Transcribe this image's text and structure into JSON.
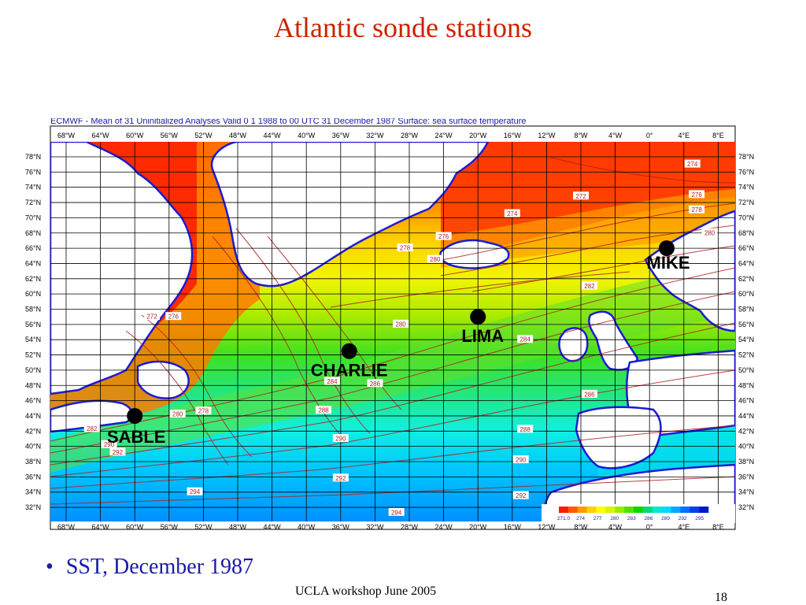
{
  "slide": {
    "title": "Atlantic sonde stations",
    "map_caption": "ECMWF - Mean of 31 Uninitialized Analyses Valid 0 1 1988 to 00 UTC 31 December 1987 Surface: sea surface temperature",
    "bullet": "SST, December 1987",
    "footer": "UCLA workshop June 2005",
    "page_number": "18"
  },
  "map": {
    "top_lon_labels": [
      "68°W",
      "64°W",
      "60°W",
      "56°W",
      "52°W",
      "48°W",
      "44°W",
      "40°W",
      "36°W",
      "32°W",
      "28°W",
      "24°W",
      "20°W",
      "16°W",
      "12°W",
      "8°W",
      "4°W",
      "0°",
      "4°E",
      "8°E"
    ],
    "bottom_lon_labels": [
      "68°W",
      "64°W",
      "60°W",
      "56°W",
      "52°W",
      "48°W",
      "44°W",
      "40°W",
      "36°W",
      "32°W",
      "28°W",
      "24°W",
      "20°W",
      "16°W",
      "12°W",
      "8°W",
      "4°W",
      "0°",
      "4°E",
      "8°E"
    ],
    "left_lat_labels": [
      "78°N",
      "76°N",
      "74°N",
      "72°N",
      "70°N",
      "68°N",
      "66°N",
      "64°N",
      "62°N",
      "60°N",
      "58°N",
      "56°N",
      "54°N",
      "52°N",
      "50°N",
      "48°N",
      "46°N",
      "44°N",
      "42°N",
      "40°N",
      "38°N",
      "36°N",
      "34°N",
      "32°N"
    ],
    "right_lat_labels": [
      "78°N",
      "76°N",
      "74°N",
      "72°N",
      "70°N",
      "68°N",
      "66°N",
      "64°N",
      "62°N",
      "60°N",
      "58°N",
      "56°N",
      "54°N",
      "52°N",
      "50°N",
      "48°N",
      "46°N",
      "44°N",
      "42°N",
      "40°N",
      "38°N",
      "36°N",
      "34°N",
      "32°N"
    ],
    "stations": [
      {
        "name": "MIKE",
        "lon": 2,
        "lat": 66
      },
      {
        "name": "LIMA",
        "lon": -20,
        "lat": 57
      },
      {
        "name": "CHARLIE",
        "lon": -35,
        "lat": 52.5
      },
      {
        "name": "SABLE",
        "lon": -60,
        "lat": 44
      }
    ],
    "contour_labels": [
      {
        "text": "274",
        "lon": 5,
        "lat": 77
      },
      {
        "text": "272",
        "lon": -8,
        "lat": 72.8
      },
      {
        "text": "276",
        "lon": 5.5,
        "lat": 73
      },
      {
        "text": "278",
        "lon": 5.5,
        "lat": 71
      },
      {
        "text": "274",
        "lon": -16,
        "lat": 70.5
      },
      {
        "text": "280",
        "lon": 7,
        "lat": 68
      },
      {
        "text": "276",
        "lon": -24,
        "lat": 67.5
      },
      {
        "text": "278",
        "lon": -28.5,
        "lat": 66
      },
      {
        "text": "280",
        "lon": -25,
        "lat": 64.5
      },
      {
        "text": "282",
        "lon": -7,
        "lat": 61
      },
      {
        "text": "276",
        "lon": -55.5,
        "lat": 57
      },
      {
        "text": "272",
        "lon": -58,
        "lat": 57
      },
      {
        "text": "280",
        "lon": -29,
        "lat": 56
      },
      {
        "text": "284",
        "lon": -14.5,
        "lat": 54
      },
      {
        "text": "284",
        "lon": -37,
        "lat": 48.5
      },
      {
        "text": "286",
        "lon": -32,
        "lat": 48.2
      },
      {
        "text": "286",
        "lon": -7,
        "lat": 46.8
      },
      {
        "text": "278",
        "lon": -52,
        "lat": 44.6
      },
      {
        "text": "280",
        "lon": -55,
        "lat": 44.2
      },
      {
        "text": "288",
        "lon": -38,
        "lat": 44.7
      },
      {
        "text": "288",
        "lon": -14.5,
        "lat": 42.2
      },
      {
        "text": "282",
        "lon": -65,
        "lat": 42.3
      },
      {
        "text": "290",
        "lon": -36,
        "lat": 41
      },
      {
        "text": "290",
        "lon": -63,
        "lat": 40.2
      },
      {
        "text": "292",
        "lon": -62,
        "lat": 39.2
      },
      {
        "text": "290",
        "lon": -15,
        "lat": 38.2
      },
      {
        "text": "292",
        "lon": -36,
        "lat": 35.8
      },
      {
        "text": "294",
        "lon": -53,
        "lat": 34
      },
      {
        "text": "292",
        "lon": -15,
        "lat": 33.5
      },
      {
        "text": "294",
        "lon": -29.5,
        "lat": 31.3
      }
    ],
    "colorbar": {
      "labels": [
        "271.0",
        "274",
        "277",
        "280",
        "283",
        "286",
        "289",
        "292",
        "295"
      ],
      "colors": [
        "#ff1a00",
        "#ff5a00",
        "#ff9a00",
        "#ffd200",
        "#ffff00",
        "#d6f500",
        "#9aeb00",
        "#55e000",
        "#10d400",
        "#00d880",
        "#00e8d0",
        "#00d8ff",
        "#00a8ff",
        "#0070ff",
        "#0040e8",
        "#0018c8"
      ]
    },
    "colors": {
      "land": "#ffffff",
      "coast": "#1b1bd6",
      "grid": "#000000",
      "contour": "#b02020"
    }
  }
}
